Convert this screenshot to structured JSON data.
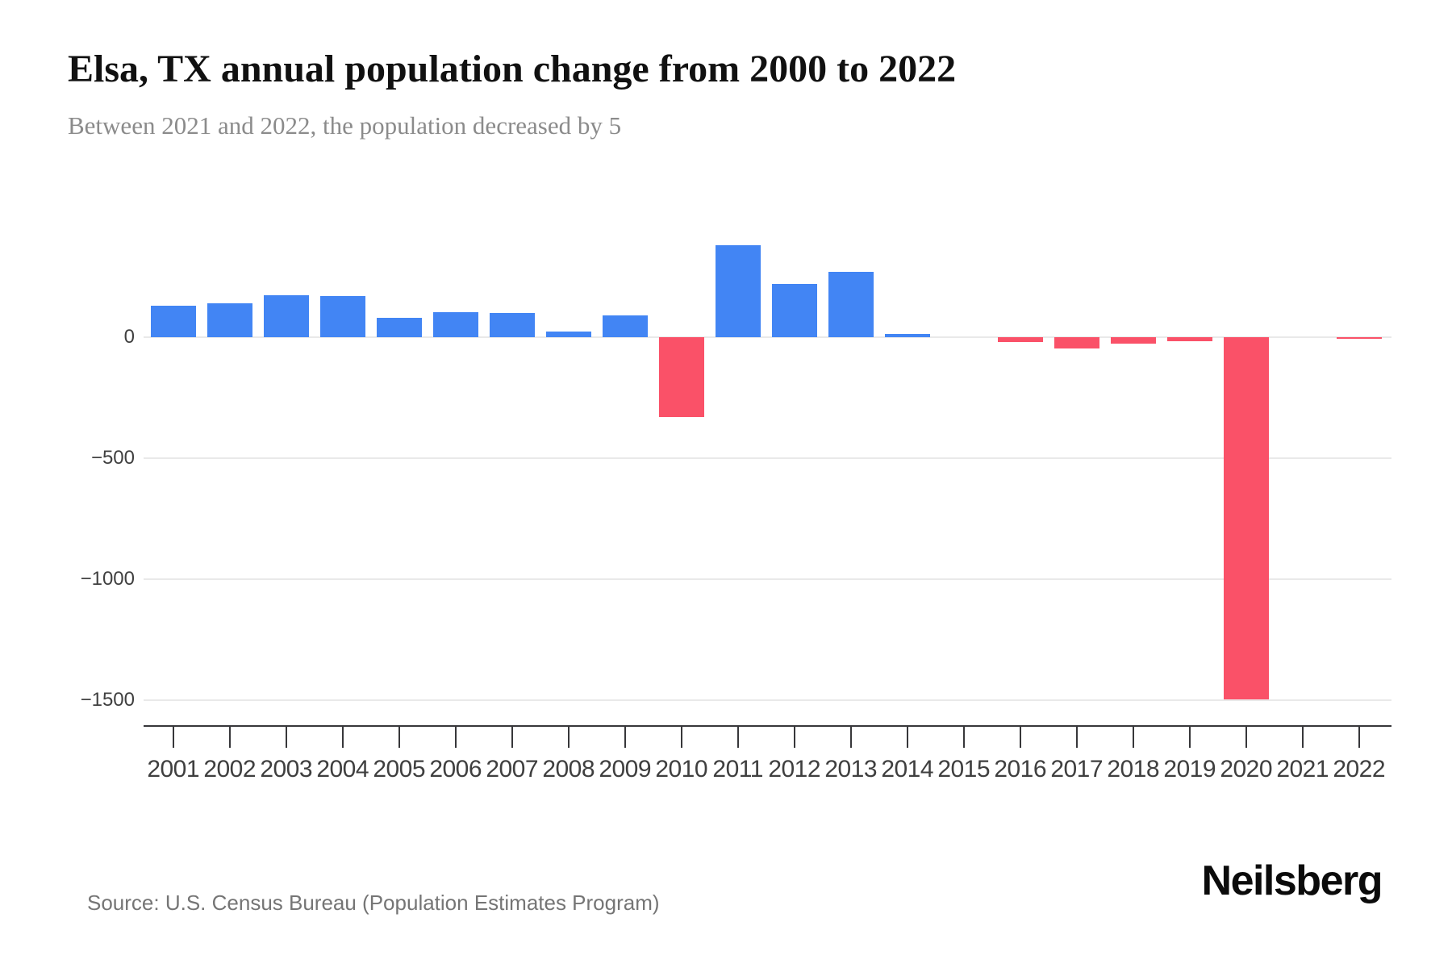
{
  "header": {
    "title": "Elsa, TX annual population change from 2000 to 2022",
    "subtitle": "Between 2021 and 2022, the population decreased by 5"
  },
  "footer": {
    "source": "Source: U.S. Census Bureau (Population Estimates Program)",
    "brand": "Neilsberg"
  },
  "colors": {
    "positive_bar": "#4285f4",
    "negative_bar": "#fa5168",
    "gridline": "#e9e9e9",
    "axis_line": "#37373a",
    "x_tick": "#37373a",
    "x_label": "#3f3f3f",
    "y_label": "#404040",
    "title": "#111111",
    "subtitle": "#8b8b8b",
    "source": "#757575"
  },
  "chart_data": {
    "type": "bar",
    "title": "Elsa, TX annual population change from 2000 to 2022",
    "subtitle": "Between 2021 and 2022, the population decreased by 5",
    "xlabel": "",
    "ylabel": "",
    "categories": [
      "2001",
      "2002",
      "2003",
      "2004",
      "2005",
      "2006",
      "2007",
      "2008",
      "2009",
      "2010",
      "2011",
      "2012",
      "2013",
      "2014",
      "2015",
      "2016",
      "2017",
      "2018",
      "2019",
      "2020",
      "2021",
      "2022"
    ],
    "values": [
      130,
      140,
      175,
      170,
      80,
      105,
      100,
      25,
      90,
      -330,
      380,
      220,
      270,
      15,
      0,
      -20,
      -45,
      -25,
      -15,
      -1495,
      0,
      -5
    ],
    "yticks": [
      0,
      -500,
      -1000,
      -1500
    ],
    "ylim": [
      -1560,
      600
    ],
    "grid": "horizontal",
    "legend": "none",
    "bar_color_rule": "blue for increase, pink-red for decrease"
  }
}
